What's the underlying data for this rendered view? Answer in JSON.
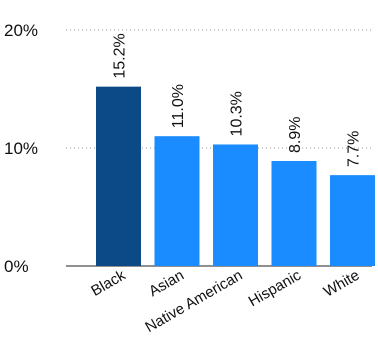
{
  "chart_data": {
    "type": "bar",
    "categories": [
      "Black",
      "Asian",
      "Native American",
      "Hispanic",
      "White"
    ],
    "values": [
      15.2,
      11.0,
      10.3,
      8.9,
      7.7
    ],
    "value_labels": [
      "15.2%",
      "11.0%",
      "10.3%",
      "8.9%",
      "7.7%"
    ],
    "y_ticks": [
      0,
      10,
      20
    ],
    "y_tick_labels": [
      "0%",
      "10%",
      "20%"
    ],
    "ylim": [
      0,
      20
    ],
    "grid": true,
    "title": "",
    "xlabel": "",
    "ylabel": "",
    "colors": {
      "highlight": "#0b4a86",
      "default": "#1a8cff"
    },
    "highlight_index": 0
  }
}
